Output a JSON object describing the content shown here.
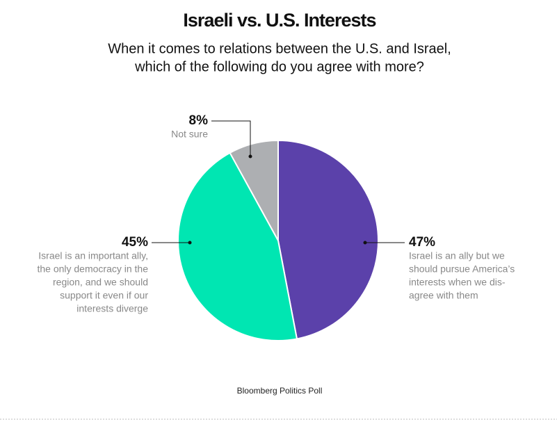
{
  "chart_data": {
    "type": "pie",
    "title": "Israeli vs. U.S. Interests",
    "subtitle": [
      "When it comes to relations between the U.S. and Israel,",
      "which of the following do you agree with more?"
    ],
    "categories": [
      [
        "Israel is an ally but we",
        "should pursue America’s",
        "interests when we dis-",
        "agree with them"
      ],
      [
        "Israel is an important ally,",
        "the only democracy in the",
        "region, and we should",
        "support it even if our",
        "interests diverge"
      ],
      [
        "Not sure"
      ]
    ],
    "values": [
      47,
      45,
      8
    ],
    "value_labels": [
      "47%",
      "45%",
      "8%"
    ],
    "colors": [
      "#5b41aa",
      "#00e6b2",
      "#adafb2"
    ],
    "source": "Bloomberg Politics Poll"
  }
}
